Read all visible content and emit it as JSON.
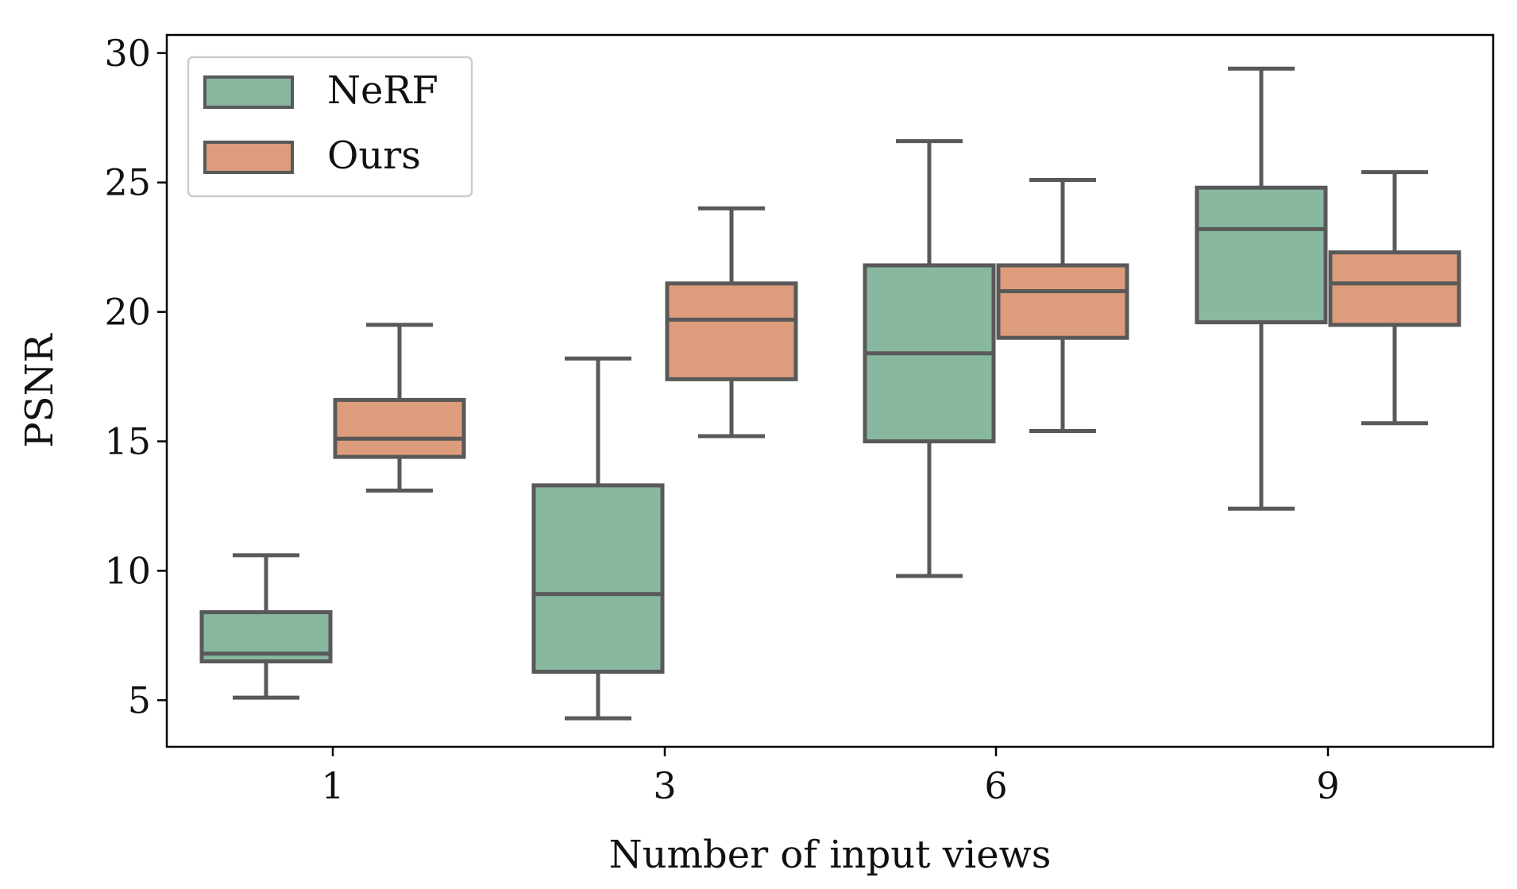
{
  "chart_data": {
    "type": "box",
    "title": "",
    "xlabel": "Number of input views",
    "ylabel": "PSNR",
    "categories": [
      "1",
      "3",
      "6",
      "9"
    ],
    "ylim": [
      3.2,
      30.7
    ],
    "yticks": [
      5,
      10,
      15,
      20,
      25,
      30
    ],
    "ytick_labels": [
      "5",
      "10",
      "15",
      "20",
      "25",
      "30"
    ],
    "legend": {
      "position": "top-left",
      "entries": [
        "NeRF",
        "Ours"
      ]
    },
    "series": [
      {
        "name": "NeRF",
        "color": "#88b8a0",
        "boxes": [
          {
            "category": "1",
            "whisker_low": 5.1,
            "q1": 6.5,
            "median": 6.8,
            "q3": 8.4,
            "whisker_high": 10.6
          },
          {
            "category": "3",
            "whisker_low": 4.3,
            "q1": 6.1,
            "median": 9.1,
            "q3": 13.3,
            "whisker_high": 18.2
          },
          {
            "category": "6",
            "whisker_low": 9.8,
            "q1": 15.0,
            "median": 18.4,
            "q3": 21.8,
            "whisker_high": 26.6
          },
          {
            "category": "9",
            "whisker_low": 12.4,
            "q1": 19.6,
            "median": 23.2,
            "q3": 24.8,
            "whisker_high": 29.4
          }
        ]
      },
      {
        "name": "Ours",
        "color": "#dd9c7c",
        "boxes": [
          {
            "category": "1",
            "whisker_low": 13.1,
            "q1": 14.4,
            "median": 15.1,
            "q3": 16.6,
            "whisker_high": 19.5
          },
          {
            "category": "3",
            "whisker_low": 15.2,
            "q1": 17.4,
            "median": 19.7,
            "q3": 21.1,
            "whisker_high": 24.0
          },
          {
            "category": "6",
            "whisker_low": 15.4,
            "q1": 19.0,
            "median": 20.8,
            "q3": 21.8,
            "whisker_high": 25.1
          },
          {
            "category": "9",
            "whisker_low": 15.7,
            "q1": 19.5,
            "median": 21.1,
            "q3": 22.3,
            "whisker_high": 25.4
          }
        ]
      }
    ],
    "edge_color": "#595959"
  }
}
